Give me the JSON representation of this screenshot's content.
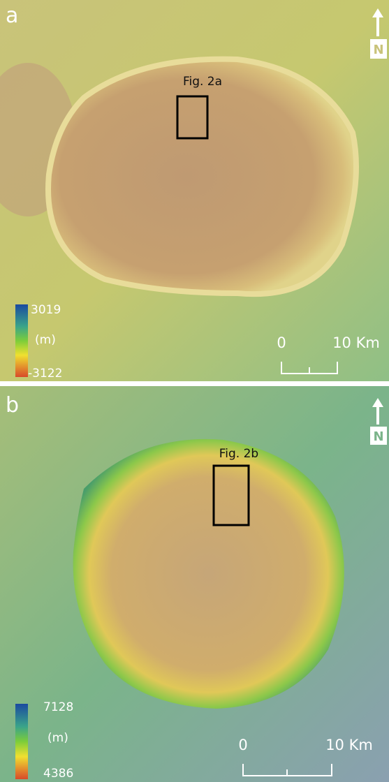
{
  "panels": [
    {
      "label": "a",
      "box_label": "Fig. 2a",
      "north": "N",
      "legend": {
        "max": 3019,
        "unit": "(m)",
        "min": -3122
      },
      "scale": {
        "start": "0",
        "end": "10 Km"
      }
    },
    {
      "label": "b",
      "box_label": "Fig. 2b",
      "north": "N",
      "legend": {
        "max": 7128,
        "unit": "(m)",
        "min": 4386
      },
      "scale": {
        "start": "0",
        "end": "10 Km"
      }
    }
  ]
}
